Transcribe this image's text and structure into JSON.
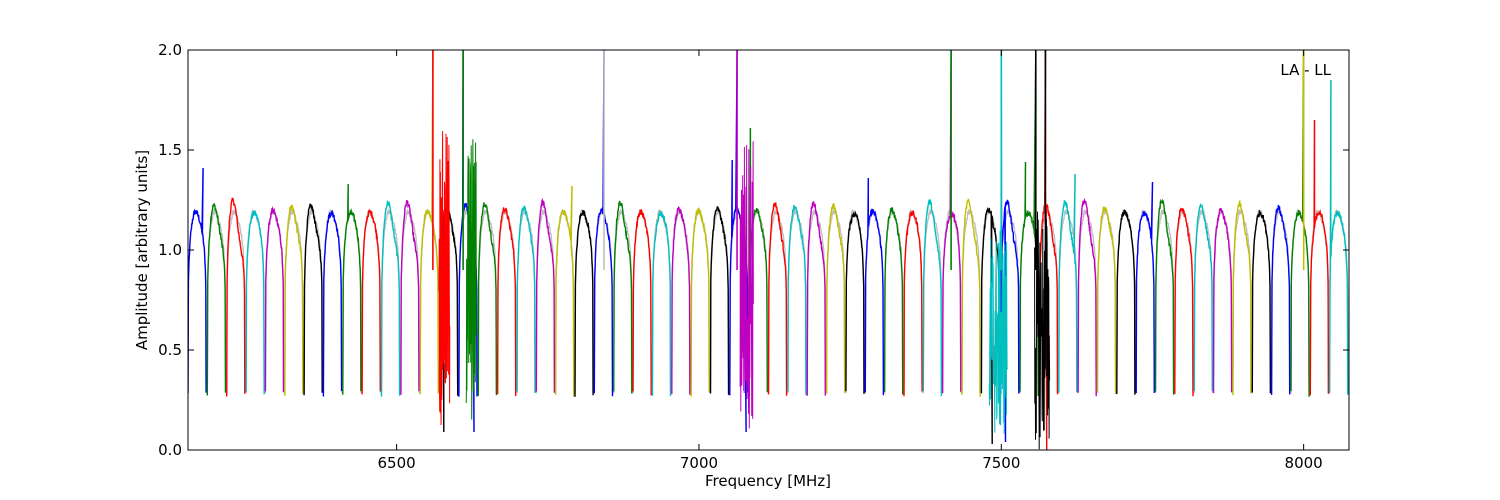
{
  "chart_data": {
    "type": "line",
    "title": "",
    "xlabel": "Frequency [MHz]",
    "ylabel": "Amplitude [arbitrary units]",
    "xlim": [
      6155,
      8075
    ],
    "ylim": [
      0.0,
      2.0
    ],
    "xticks": [
      6500,
      7000,
      7500,
      8000
    ],
    "xtick_labels": [
      "6500",
      "7000",
      "7500",
      "8000"
    ],
    "yticks": [
      0.0,
      0.5,
      1.0,
      1.5,
      2.0
    ],
    "ytick_labels": [
      "0.0",
      "0.5",
      "1.0",
      "1.5",
      "2.0"
    ],
    "grid": false,
    "annotation": "LA - LL",
    "annotation_position": "top-right",
    "color_cycle": [
      "#0000ff",
      "#008000",
      "#ff0000",
      "#00bfbf",
      "#bf00bf",
      "#bfbf00",
      "#000000"
    ],
    "background_trace_color": "#c0c0c0",
    "channel_width_mhz": 32,
    "channels_start_mhz": 6155,
    "channel_count": 60,
    "passband_level": 1.18,
    "edge_level": 0.28,
    "spikes": [
      {
        "x": 6560,
        "y": 2.0,
        "color": "#ff0000"
      },
      {
        "x": 6610,
        "y": 2.0,
        "color": "#008000"
      },
      {
        "x": 6843,
        "y": 2.0,
        "color": "#c0c0c0"
      },
      {
        "x": 7063,
        "y": 2.0,
        "color": "#bf00bf"
      },
      {
        "x": 7417,
        "y": 2.0,
        "color": "#008000"
      },
      {
        "x": 7500,
        "y": 2.0,
        "color": "#00bfbf"
      },
      {
        "x": 7557,
        "y": 2.0,
        "color": "#000000"
      },
      {
        "x": 7573,
        "y": 2.0,
        "color": "#000000"
      },
      {
        "x": 8000,
        "y": 2.0,
        "color": "#bfbf00"
      }
    ],
    "dips": [
      {
        "x": 6578,
        "y": 0.09,
        "color": "#ff0000"
      },
      {
        "x": 6628,
        "y": 0.09,
        "color": "#008000"
      },
      {
        "x": 7078,
        "y": 0.09,
        "color": "#bf00bf"
      },
      {
        "x": 7485,
        "y": 0.03,
        "color": "#00bfbf"
      },
      {
        "x": 7507,
        "y": 0.04,
        "color": "#00bfbf"
      },
      {
        "x": 7575,
        "y": 0.0,
        "color": "#000000"
      }
    ],
    "peaks": [
      {
        "x": 6180,
        "y": 1.41,
        "color": "#0000ff"
      },
      {
        "x": 6420,
        "y": 1.33,
        "color": "#ff0000"
      },
      {
        "x": 6583,
        "y": 1.36,
        "color": "#0000ff"
      },
      {
        "x": 6790,
        "y": 1.32,
        "color": "#008000"
      },
      {
        "x": 7055,
        "y": 1.45,
        "color": "#00bfbf"
      },
      {
        "x": 7085,
        "y": 1.61,
        "color": "#bf00bf"
      },
      {
        "x": 7280,
        "y": 1.36,
        "color": "#00bfbf"
      },
      {
        "x": 7540,
        "y": 1.44,
        "color": "#bfbf00"
      },
      {
        "x": 7622,
        "y": 1.38,
        "color": "#0000ff"
      },
      {
        "x": 7750,
        "y": 1.34,
        "color": "#bfbf00"
      },
      {
        "x": 8018,
        "y": 1.65,
        "color": "#000000"
      },
      {
        "x": 8045,
        "y": 1.85,
        "color": "#0000ff"
      }
    ]
  }
}
